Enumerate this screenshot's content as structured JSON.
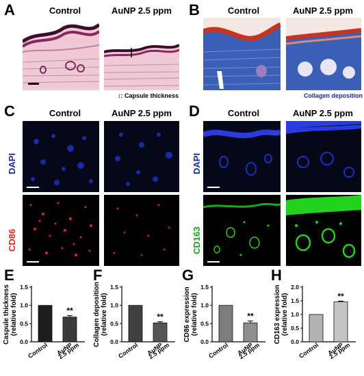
{
  "panels": {
    "A": {
      "letter": "A",
      "titles": [
        "Control",
        "AuNP 2.5 ppm"
      ],
      "note": "↕: Capsule thickness"
    },
    "B": {
      "letter": "B",
      "titles": [
        "Control",
        "AuNP 2.5 ppm"
      ],
      "note": "Collagen deposition"
    },
    "C": {
      "letter": "C",
      "titles": [
        "Control",
        "AuNP 2.5 ppm"
      ],
      "row_labels": [
        "DAPI",
        "CD86"
      ]
    },
    "D": {
      "letter": "D",
      "titles": [
        "Control",
        "AuNP 2.5 ppm"
      ],
      "row_labels": [
        "DAPI",
        "CD163"
      ]
    }
  },
  "colors": {
    "he_pink": "#e9b7c8",
    "he_dark": "#6a1b4d",
    "mt_blue": "#3b5fb5",
    "mt_red": "#c8331f",
    "dapi_blue": "#1f2fc0",
    "cd86_red": "#e0281e",
    "cd163_green": "#23d21f",
    "bg_black": "#000000",
    "bar_control_E": "#1e1e1e",
    "bar_aunp_E": "#3a3a3a",
    "bar_control_F": "#404040",
    "bar_aunp_F": "#555555",
    "bar_control_G": "#7d7d7d",
    "bar_aunp_G": "#8f8f8f",
    "bar_control_H": "#b3b3b3",
    "bar_aunp_H": "#c4c4c4"
  },
  "chart_data": [
    {
      "panel": "E",
      "type": "bar",
      "ylabel": [
        "Caspule thickness",
        "(relative fold)"
      ],
      "categories": [
        "Control",
        "AuNP\n2.5 ppm"
      ],
      "values": [
        1.0,
        0.68
      ],
      "errors": [
        0,
        0.04
      ],
      "ylim": [
        0,
        1.5
      ],
      "yticks": [
        "0.0",
        "0.5",
        "1.0",
        "1.5"
      ],
      "annotation": "**"
    },
    {
      "panel": "F",
      "type": "bar",
      "ylabel": [
        "Collagen deposition",
        "(relative fold)"
      ],
      "categories": [
        "Control",
        "AuNP\n2.5 ppm"
      ],
      "values": [
        1.0,
        0.52
      ],
      "errors": [
        0,
        0.03
      ],
      "ylim": [
        0,
        1.5
      ],
      "yticks": [
        "0.0",
        "0.5",
        "1.0",
        "1.5"
      ],
      "annotation": "**"
    },
    {
      "panel": "G",
      "type": "bar",
      "ylabel": [
        "CD86 expression",
        "(relative fold)"
      ],
      "categories": [
        "Control",
        "AuNP\n2.5 ppm"
      ],
      "values": [
        1.0,
        0.52
      ],
      "errors": [
        0,
        0.05
      ],
      "ylim": [
        0,
        1.5
      ],
      "yticks": [
        "0.0",
        "0.5",
        "1.0",
        "1.5"
      ],
      "annotation": "**"
    },
    {
      "panel": "H",
      "type": "bar",
      "ylabel": [
        "CD163 expression",
        "(relative fold)"
      ],
      "categories": [
        "Control",
        "AuNP\n2.5 ppm"
      ],
      "values": [
        1.0,
        1.46
      ],
      "errors": [
        0,
        0.03
      ],
      "ylim": [
        0,
        2.0
      ],
      "yticks": [
        "0.0",
        "0.5",
        "1.0",
        "1.5",
        "2.0"
      ],
      "annotation": "**"
    }
  ]
}
